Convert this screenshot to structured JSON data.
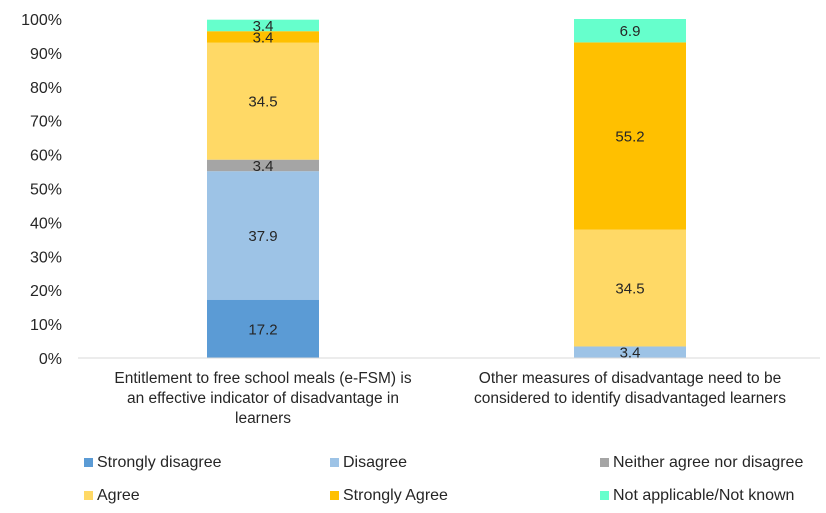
{
  "chart_data": {
    "type": "bar",
    "stacked": true,
    "percent_axis": true,
    "ylim": [
      0,
      100
    ],
    "yticks": [
      "0%",
      "10%",
      "20%",
      "30%",
      "40%",
      "50%",
      "60%",
      "70%",
      "80%",
      "90%",
      "100%"
    ],
    "grid": false,
    "legend_position": "bottom",
    "categories": [
      [
        "Entitlement to free school meals (e-FSM) is",
        "an effective indicator of disadvantage in",
        "learners"
      ],
      [
        "Other measures of disadvantage need to be",
        "considered to identify disadvantaged learners"
      ]
    ],
    "series": [
      {
        "name": "Strongly disagree",
        "color": "#5b9bd5",
        "values": [
          17.2,
          0
        ],
        "labels": [
          "17.2",
          ""
        ]
      },
      {
        "name": "Disagree",
        "color": "#9dc3e6",
        "values": [
          37.9,
          3.4
        ],
        "labels": [
          "37.9",
          "3.4"
        ]
      },
      {
        "name": "Neither agree nor disagree",
        "color": "#a5a5a5",
        "values": [
          3.4,
          0
        ],
        "labels": [
          "3.4",
          ""
        ]
      },
      {
        "name": "Agree",
        "color": "#ffd966",
        "values": [
          34.5,
          34.5
        ],
        "labels": [
          "34.5",
          "34.5"
        ]
      },
      {
        "name": "Strongly Agree",
        "color": "#ffc000",
        "values": [
          3.4,
          55.2
        ],
        "labels": [
          "3.4",
          "55.2"
        ]
      },
      {
        "name": "Not applicable/Not known",
        "color": "#66ffcc",
        "values": [
          3.4,
          6.9
        ],
        "labels": [
          "3.4",
          "6.9"
        ]
      }
    ]
  }
}
